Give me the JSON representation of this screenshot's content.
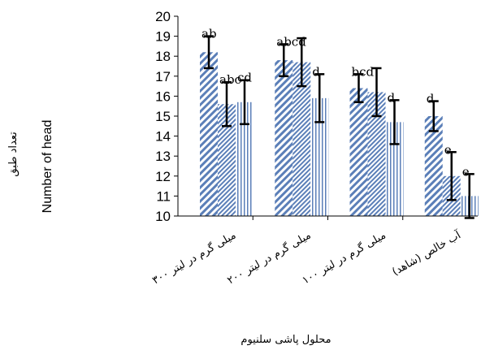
{
  "chart_data": {
    "type": "bar",
    "ylabel_fa": "تعداد طبق",
    "ylabel_en": "Number of head",
    "xlabel": "محلول پاشی سلنیوم",
    "ylim": [
      10,
      20
    ],
    "yticks": [
      "10",
      "11",
      "12",
      "13",
      "14",
      "15",
      "16",
      "17",
      "18",
      "19",
      "20"
    ],
    "categories": [
      "۳۰۰ میلی گرم در لیتر",
      "۲۰۰ میلی گرم در لیتر",
      "۱۰۰ میلی گرم در لیتر",
      "آب خالص (شاهد)"
    ],
    "series": [
      {
        "values": [
          18.2,
          17.8,
          16.4,
          15.0
        ],
        "errors": [
          0.8,
          0.8,
          0.7,
          0.75
        ],
        "letters": [
          "ab",
          "abcd",
          "bcd",
          "d"
        ]
      },
      {
        "values": [
          15.6,
          17.7,
          16.2,
          12.0
        ],
        "errors": [
          1.1,
          1.2,
          1.2,
          1.2
        ],
        "letters": [
          "abc",
          "",
          "",
          "e"
        ]
      },
      {
        "values": [
          15.7,
          15.9,
          14.7,
          11.0
        ],
        "errors": [
          1.1,
          1.2,
          1.1,
          1.1
        ],
        "letters": [
          "cd",
          "d",
          "d",
          "e"
        ]
      }
    ],
    "grid": false,
    "legend": "none",
    "colors": {
      "bar": "#5b7fb8",
      "error_bar": "#000000",
      "axis": "#000000"
    }
  }
}
